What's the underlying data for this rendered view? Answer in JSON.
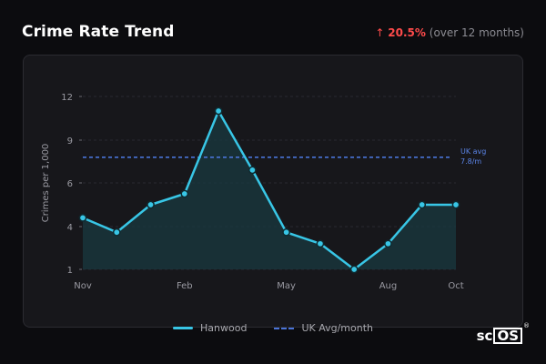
{
  "header": {
    "title": "Crime Rate Trend",
    "change_arrow": "↑",
    "change_pct": "20.5%",
    "change_period": "(over 12 months)"
  },
  "legend": {
    "series_label": "Hanwood",
    "avg_label": "UK Avg/month"
  },
  "reference_line": {
    "label_line1": "UK avg",
    "label_line2": "7.8/m"
  },
  "brand": {
    "logo_prefix": "sc",
    "logo_boxed": "OS",
    "logo_mark": "®"
  },
  "colors": {
    "line": "#38c6e6",
    "area": "#1a3a40",
    "avg_line": "#4a74d8",
    "accent_up": "#ff4b4b"
  },
  "chart_data": {
    "type": "line",
    "title": "Crime Rate Trend",
    "ylabel": "Crimes per 1,000",
    "xlabel": "",
    "y_ticks": [
      1,
      4,
      6,
      9,
      12
    ],
    "x_ticks": [
      {
        "label": "Nov",
        "index": 0
      },
      {
        "label": "Feb",
        "index": 3
      },
      {
        "label": "May",
        "index": 6
      },
      {
        "label": "Aug",
        "index": 9
      },
      {
        "label": "Oct",
        "index": 11
      }
    ],
    "ylim": [
      1,
      12
    ],
    "series": [
      {
        "name": "Hanwood",
        "values": [
          4.4,
          3.6,
          5.0,
          5.5,
          11.0,
          6.9,
          3.6,
          2.8,
          1.0,
          2.8,
          5.0,
          5.0
        ]
      }
    ],
    "reference": {
      "name": "UK Avg/month",
      "value": 7.8
    },
    "grid": true,
    "legend_position": "bottom"
  }
}
